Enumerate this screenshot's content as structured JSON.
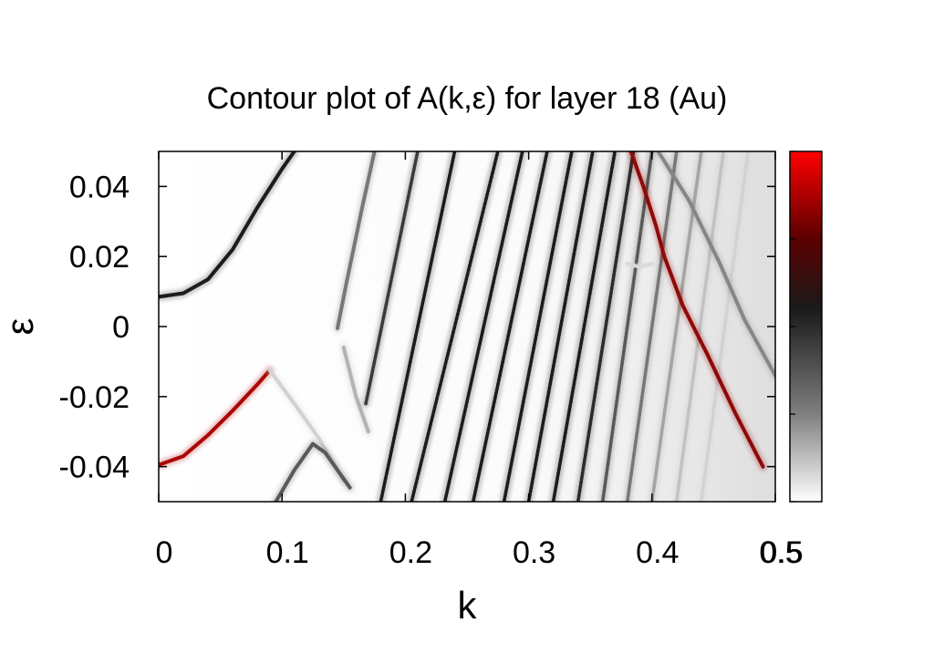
{
  "chart_data": {
    "type": "heatmap",
    "title": "Contour plot of A(k,ε)  for layer 18 (Au)",
    "xlabel": "k",
    "ylabel": "ε",
    "xlim": [
      0,
      0.5
    ],
    "ylim": [
      -0.05,
      0.05
    ],
    "x_ticks": [
      0,
      0.1,
      0.2,
      0.3,
      0.4,
      0.5
    ],
    "x_tick_labels": [
      "0",
      "0.1",
      "0.2",
      "0.3",
      "0.4",
      "0.5"
    ],
    "y_ticks": [
      -0.04,
      -0.02,
      0,
      0.02,
      0.04
    ],
    "y_tick_labels": [
      "-0.04",
      "-0.02",
      "0",
      "0.02",
      "0.04"
    ],
    "colorbar": {
      "range": [
        0,
        0.5
      ],
      "tick_labels": [
        "0.5"
      ],
      "colors": [
        "#ffffff",
        "#7f7f7f",
        "#1a1a1a",
        "#5a0000",
        "#ff0000"
      ]
    },
    "grid": false,
    "bands": [
      {
        "kind": "curve",
        "points": [
          [
            0.0,
            0.0085
          ],
          [
            0.02,
            0.0095
          ],
          [
            0.04,
            0.0135
          ],
          [
            0.06,
            0.022
          ],
          [
            0.08,
            0.034
          ],
          [
            0.1,
            0.045
          ],
          [
            0.11,
            0.05
          ]
        ],
        "intensity": 0.3
      },
      {
        "kind": "curve",
        "points": [
          [
            0.0,
            -0.0395
          ],
          [
            0.02,
            -0.037
          ],
          [
            0.04,
            -0.031
          ],
          [
            0.06,
            -0.024
          ],
          [
            0.08,
            -0.0165
          ],
          [
            0.09,
            -0.0125
          ]
        ],
        "intensity": 0.55
      },
      {
        "kind": "curve",
        "points": [
          [
            0.09,
            -0.0125
          ],
          [
            0.11,
            -0.022
          ],
          [
            0.13,
            -0.032
          ],
          [
            0.15,
            -0.044
          ]
        ],
        "intensity": 0.06
      },
      {
        "kind": "curve",
        "points": [
          [
            0.095,
            -0.05
          ],
          [
            0.11,
            -0.041
          ],
          [
            0.125,
            -0.0335
          ],
          [
            0.135,
            -0.036
          ],
          [
            0.155,
            -0.046
          ]
        ],
        "intensity": 0.22
      },
      {
        "kind": "curve",
        "points": [
          [
            0.145,
            -0.0005
          ],
          [
            0.152,
            0.012
          ],
          [
            0.165,
            0.034
          ],
          [
            0.175,
            0.05
          ]
        ],
        "intensity": 0.18
      },
      {
        "kind": "curve",
        "points": [
          [
            0.15,
            -0.006
          ],
          [
            0.155,
            -0.013
          ],
          [
            0.16,
            -0.02
          ],
          [
            0.17,
            -0.03
          ]
        ],
        "intensity": 0.1
      },
      {
        "kind": "line",
        "points": [
          [
            0.168,
            -0.022
          ],
          [
            0.21,
            0.05
          ]
        ],
        "intensity": 0.26
      },
      {
        "kind": "line",
        "points": [
          [
            0.18,
            -0.05
          ],
          [
            0.24,
            0.05
          ]
        ],
        "intensity": 0.3
      },
      {
        "kind": "line",
        "points": [
          [
            0.205,
            -0.05
          ],
          [
            0.275,
            0.05
          ]
        ],
        "intensity": 0.3
      },
      {
        "kind": "line",
        "points": [
          [
            0.232,
            -0.05
          ],
          [
            0.295,
            0.05
          ]
        ],
        "intensity": 0.3
      },
      {
        "kind": "line",
        "points": [
          [
            0.255,
            -0.05
          ],
          [
            0.315,
            0.05
          ]
        ],
        "intensity": 0.3
      },
      {
        "kind": "line",
        "points": [
          [
            0.28,
            -0.05
          ],
          [
            0.335,
            0.05
          ]
        ],
        "intensity": 0.3
      },
      {
        "kind": "line",
        "points": [
          [
            0.3,
            -0.05
          ],
          [
            0.352,
            0.05
          ]
        ],
        "intensity": 0.3
      },
      {
        "kind": "line",
        "points": [
          [
            0.32,
            -0.05
          ],
          [
            0.37,
            0.05
          ]
        ],
        "intensity": 0.3
      },
      {
        "kind": "line",
        "points": [
          [
            0.34,
            -0.05
          ],
          [
            0.385,
            0.05
          ]
        ],
        "intensity": 0.28
      },
      {
        "kind": "line",
        "points": [
          [
            0.36,
            -0.05
          ],
          [
            0.4,
            0.05
          ]
        ],
        "intensity": 0.22
      },
      {
        "kind": "line",
        "points": [
          [
            0.38,
            -0.05
          ],
          [
            0.42,
            0.05
          ]
        ],
        "intensity": 0.18
      },
      {
        "kind": "line",
        "points": [
          [
            0.4,
            -0.05
          ],
          [
            0.44,
            0.05
          ]
        ],
        "intensity": 0.12
      },
      {
        "kind": "line",
        "points": [
          [
            0.42,
            -0.05
          ],
          [
            0.458,
            0.05
          ]
        ],
        "intensity": 0.08
      },
      {
        "kind": "line",
        "points": [
          [
            0.44,
            -0.05
          ],
          [
            0.478,
            0.05
          ]
        ],
        "intensity": 0.06
      },
      {
        "kind": "curve",
        "points": [
          [
            0.383,
            0.05
          ],
          [
            0.393,
            0.04
          ],
          [
            0.403,
            0.029
          ],
          [
            0.41,
            0.02
          ],
          [
            0.425,
            0.006
          ],
          [
            0.445,
            -0.008
          ],
          [
            0.468,
            -0.025
          ],
          [
            0.49,
            -0.04
          ]
        ],
        "intensity": 0.5
      },
      {
        "kind": "curve",
        "points": [
          [
            0.405,
            0.05
          ],
          [
            0.43,
            0.036
          ],
          [
            0.455,
            0.018
          ],
          [
            0.475,
            0.002
          ],
          [
            0.5,
            -0.014
          ]
        ],
        "intensity": 0.16
      },
      {
        "kind": "curve",
        "points": [
          [
            0.38,
            0.018
          ],
          [
            0.39,
            0.017
          ],
          [
            0.4,
            0.018
          ]
        ],
        "intensity": 0.05
      }
    ]
  }
}
